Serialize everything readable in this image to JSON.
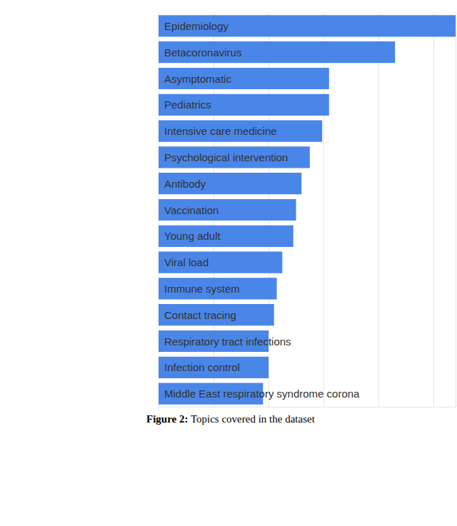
{
  "chart_data": {
    "type": "bar",
    "orientation": "horizontal",
    "title": "Figure 2: Topics covered in the dataset",
    "categories": [
      "Epidemiology",
      "Betacoronavirus",
      "Asymptomatic",
      "Pediatrics",
      "Intensive care medicine",
      "Psychological intervention",
      "Antibody",
      "Vaccination",
      "Young adult",
      "Viral load",
      "Immune system",
      "Contact tracing",
      "Respiratory tract infections",
      "Infection control",
      "Middle East respiratory syndrome corona"
    ],
    "values": [
      108,
      86,
      62,
      62,
      59.5,
      55,
      52,
      50,
      49,
      45,
      43,
      42,
      40,
      40,
      38
    ],
    "color": "#4a86e8",
    "xlim": [
      0,
      108
    ],
    "xticks": [
      0,
      20,
      40,
      60,
      80,
      100
    ],
    "grid": true,
    "tick_labels": "y"
  }
}
